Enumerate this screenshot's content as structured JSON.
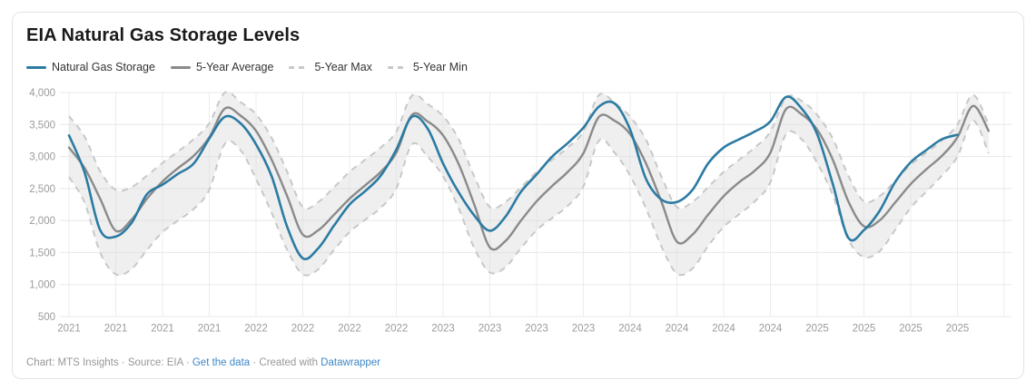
{
  "card": {
    "title": "EIA Natural Gas Storage Levels",
    "footer": {
      "byline": "Chart: MTS Insights",
      "separator": "·",
      "source": "Source: EIA",
      "data_link": "Get the data",
      "created_with": "Created with",
      "tool_link": "Datawrapper"
    }
  },
  "legend": [
    {
      "label": "Natural Gas Storage",
      "style": "solid",
      "color": "#2b7ba3"
    },
    {
      "label": "5-Year Average",
      "style": "solid",
      "color": "#8a8a8a"
    },
    {
      "label": "5-Year Max",
      "style": "dashed",
      "color": "#c8c8c8"
    },
    {
      "label": "5-Year Min",
      "style": "dashed",
      "color": "#c8c8c8"
    }
  ],
  "colors": {
    "storage": "#2b7ba3",
    "average": "#8a8a8a",
    "band_fill": "#d8d8d8",
    "band_fill_opacity": 0.42,
    "band_edge": "#c8c8c8",
    "grid_h": "#e8e8e8",
    "grid_v": "#ececec",
    "axis_text": "#9b9b9b",
    "link": "#3d87c8"
  },
  "chart_data": {
    "type": "line",
    "title": "EIA Natural Gas Storage Levels",
    "x_domain": [
      2021.0,
      2026.0
    ],
    "ylim": [
      500,
      4000
    ],
    "grid": true,
    "legend_position": "top",
    "y_tick_values": [
      4000,
      3500,
      3000,
      2500,
      2000,
      1500,
      1000,
      500
    ],
    "y_tick_labels": [
      "4,000",
      "3,500",
      "3,000",
      "2,500",
      "2,000",
      "1,500",
      "1,000",
      "500"
    ],
    "x_tick_step_years": 0.25,
    "x_tick_labels": [
      "2021",
      "2021",
      "2021",
      "2021",
      "2022",
      "2022",
      "2022",
      "2022",
      "2023",
      "2023",
      "2023",
      "2023",
      "2024",
      "2024",
      "2024",
      "2024",
      "2025",
      "2025",
      "2025",
      "2025"
    ],
    "band": {
      "upper": "5-Year Max",
      "lower": "5-Year Min"
    },
    "x_start": 2021.0,
    "x_step_months": 1,
    "series": [
      {
        "name": "Natural Gas Storage",
        "style": "solid",
        "color": "#2b7ba3",
        "width": 2.6,
        "values": [
          3330,
          2750,
          1850,
          1750,
          1960,
          2410,
          2560,
          2730,
          2890,
          3280,
          3620,
          3520,
          3190,
          2690,
          1900,
          1410,
          1570,
          1920,
          2250,
          2460,
          2700,
          3110,
          3620,
          3440,
          2890,
          2440,
          2080,
          1840,
          2060,
          2450,
          2720,
          3000,
          3210,
          3450,
          3780,
          3830,
          3420,
          2660,
          2330,
          2290,
          2480,
          2890,
          3140,
          3270,
          3390,
          3550,
          3930,
          3750,
          3350,
          2570,
          1730,
          1850,
          2150,
          2600,
          2910,
          3100,
          3270,
          3340
        ]
      },
      {
        "name": "5-Year Average",
        "style": "solid",
        "color": "#8a8a8a",
        "width": 2.4,
        "values": [
          3140,
          2820,
          2340,
          1840,
          2010,
          2340,
          2610,
          2820,
          3010,
          3300,
          3750,
          3640,
          3400,
          2950,
          2380,
          1780,
          1850,
          2090,
          2340,
          2550,
          2760,
          3060,
          3650,
          3550,
          3330,
          2880,
          2250,
          1580,
          1680,
          2000,
          2300,
          2540,
          2760,
          3050,
          3620,
          3560,
          3350,
          2900,
          2300,
          1670,
          1780,
          2090,
          2380,
          2600,
          2780,
          3060,
          3740,
          3660,
          3420,
          2950,
          2300,
          1910,
          2000,
          2280,
          2570,
          2800,
          3010,
          3300,
          3790,
          3400
        ]
      },
      {
        "name": "5-Year Max",
        "style": "dashed",
        "color": "#c8c8c8",
        "width": 2,
        "values": [
          3630,
          3310,
          2770,
          2480,
          2520,
          2700,
          2900,
          3080,
          3270,
          3520,
          4000,
          3850,
          3660,
          3290,
          2760,
          2210,
          2290,
          2520,
          2760,
          2950,
          3140,
          3390,
          3950,
          3820,
          3630,
          3270,
          2690,
          2210,
          2290,
          2520,
          2760,
          2950,
          3140,
          3390,
          3960,
          3840,
          3620,
          3270,
          2690,
          2210,
          2290,
          2520,
          2760,
          2950,
          3140,
          3390,
          3920,
          3870,
          3650,
          3280,
          2700,
          2300,
          2380,
          2620,
          2870,
          3060,
          3250,
          3500,
          3960,
          3500
        ]
      },
      {
        "name": "5-Year Min",
        "style": "dashed",
        "color": "#c8c8c8",
        "width": 2,
        "values": [
          2680,
          2280,
          1500,
          1160,
          1240,
          1540,
          1820,
          2000,
          2180,
          2480,
          3200,
          3100,
          2650,
          2120,
          1540,
          1160,
          1240,
          1540,
          1820,
          2010,
          2200,
          2500,
          3190,
          3000,
          2690,
          2190,
          1570,
          1190,
          1270,
          1570,
          1850,
          2040,
          2230,
          2530,
          3250,
          3060,
          2700,
          2200,
          1600,
          1170,
          1250,
          1600,
          1900,
          2100,
          2300,
          2600,
          3350,
          3270,
          2900,
          2400,
          1700,
          1430,
          1520,
          1850,
          2200,
          2450,
          2700,
          3000,
          3560,
          3050
        ]
      }
    ]
  }
}
